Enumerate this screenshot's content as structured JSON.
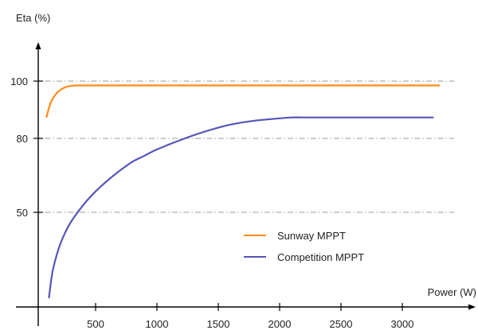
{
  "chart_data": {
    "type": "line",
    "title": "",
    "ylabel": "Eta (%)",
    "xlabel": "Power (W)",
    "x_ticks": [
      500,
      1000,
      1500,
      2000,
      2500,
      3000
    ],
    "y_ticks": [
      50,
      80,
      100
    ],
    "grid": "horizontal dash-dot at y ticks",
    "legend": "center-right",
    "series": [
      {
        "name": "Sunway MPPT",
        "color": "#ff8c1a",
        "x": [
          100,
          130,
          160,
          200,
          250,
          300,
          350,
          400,
          500,
          1000,
          1500,
          2000,
          2500,
          3000,
          3300
        ],
        "y": [
          87.5,
          92,
          94.5,
          96.5,
          97.8,
          98.3,
          98.5,
          98.5,
          98.5,
          98.5,
          98.5,
          98.5,
          98.5,
          98.5,
          98.5
        ]
      },
      {
        "name": "Competition MPPT",
        "color": "#5555bb",
        "x": [
          120,
          150,
          200,
          250,
          300,
          400,
          500,
          600,
          700,
          800,
          900,
          1000,
          1200,
          1400,
          1600,
          1800,
          2000,
          2100,
          2200,
          2500,
          3000,
          3250
        ],
        "y": [
          5,
          19,
          31,
          39,
          45,
          53,
          58.5,
          63,
          67,
          70.5,
          73,
          75.5,
          79.5,
          82.5,
          84.8,
          86.2,
          87,
          87.3,
          87.3,
          87.3,
          87.3,
          87.3
        ]
      }
    ]
  }
}
